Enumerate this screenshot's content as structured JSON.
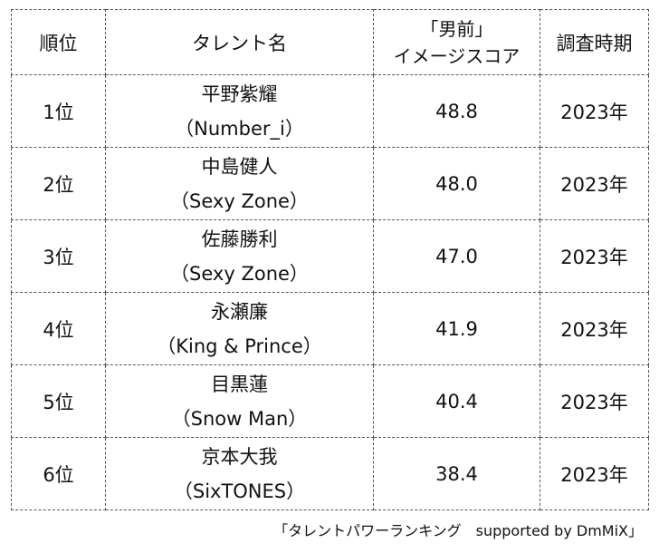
{
  "header": {
    "rank": "順位",
    "talent": "タレント名",
    "score_line1": "「男前」",
    "score_line2": "イメージスコア",
    "period": "調査時期"
  },
  "rows": [
    {
      "rank": "1位",
      "name": "平野紫耀",
      "group": "（Number_i）",
      "score": "48.8",
      "period": "2023年"
    },
    {
      "rank": "2位",
      "name": "中島健人",
      "group": "（Sexy Zone）",
      "score": "48.0",
      "period": "2023年"
    },
    {
      "rank": "3位",
      "name": "佐藤勝利",
      "group": "（Sexy Zone）",
      "score": "47.0",
      "period": "2023年"
    },
    {
      "rank": "4位",
      "name": "永瀬廉",
      "group": "（King & Prince）",
      "score": "41.9",
      "period": "2023年"
    },
    {
      "rank": "5位",
      "name": "目黒蓮",
      "group": "（Snow Man）",
      "score": "40.4",
      "period": "2023年"
    },
    {
      "rank": "6位",
      "name": "京本大我",
      "group": "（SixTONES）",
      "score": "38.4",
      "period": "2023年"
    }
  ],
  "footer": "「タレントパワーランキング　supported by DmMiX」"
}
